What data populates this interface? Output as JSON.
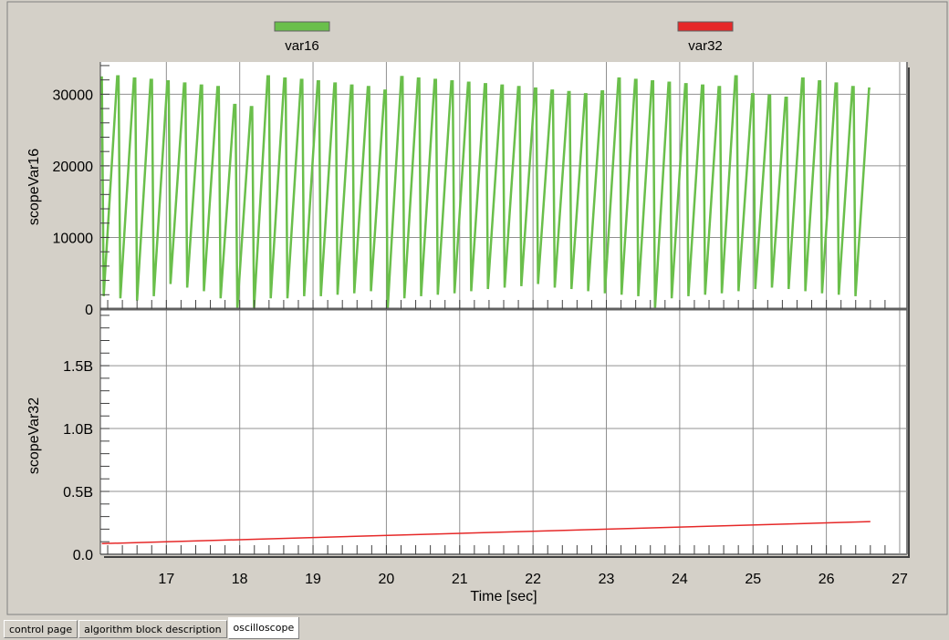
{
  "legend": [
    {
      "name": "var16",
      "color": "#6abf4b"
    },
    {
      "name": "var32",
      "color": "#e62828"
    }
  ],
  "tabs": [
    {
      "label": "control page",
      "active": false
    },
    {
      "label": "algorithm block description",
      "active": false
    },
    {
      "label": "oscilloscope",
      "active": true
    }
  ],
  "chart_data": [
    {
      "type": "line",
      "ylabel": "scopeVar16",
      "series_name": "var16",
      "color": "#6abf4b",
      "xlim": [
        16.1,
        27.1
      ],
      "ylim": [
        0,
        34500
      ],
      "yticks": [
        0,
        10000,
        20000,
        30000
      ],
      "yticklabels": [
        "0",
        "10000",
        "20000",
        "30000"
      ],
      "description": "sawtooth waveform, ~4 cycles per second",
      "x_start": 16.12,
      "x_end": 26.6,
      "sawtooth_peaks": [
        32500,
        32200,
        32000,
        31800,
        31500,
        31200,
        31000,
        28500,
        28200,
        32500,
        32200,
        32000,
        31800,
        31500,
        31200,
        31000,
        30500,
        32400,
        32200,
        32000,
        31800,
        31600,
        31400,
        31200,
        31000,
        30800,
        30500,
        30300,
        30000,
        30400,
        32200,
        32000,
        31800,
        31600,
        31400,
        31200,
        31000,
        32500,
        30000,
        29800,
        29500,
        32200,
        31800,
        31500,
        31000,
        30800
      ],
      "sawtooth_troughs": [
        1800,
        1500,
        1200,
        1800,
        3500,
        3000,
        2500,
        1500,
        0,
        0,
        1500,
        1500,
        1800,
        1800,
        2000,
        2200,
        2500,
        0,
        1500,
        1800,
        2000,
        2200,
        2500,
        2800,
        3000,
        3200,
        3500,
        3000,
        2800,
        2500,
        2200,
        2000,
        1800,
        0,
        1500,
        1800,
        2000,
        2200,
        2500,
        2800,
        3000,
        2800,
        2500,
        2200,
        2000,
        1800
      ]
    },
    {
      "type": "line",
      "ylabel": "scopeVar32",
      "series_name": "var32",
      "color": "#e62828",
      "xlim": [
        16.1,
        27.1
      ],
      "ylim": [
        0,
        1.95
      ],
      "yticks": [
        0,
        0.5,
        1.0,
        1.5
      ],
      "yticklabels": [
        "0.0",
        "0.5B",
        "1.0B",
        "1.5B"
      ],
      "x": [
        16.12,
        26.6
      ],
      "y": [
        0.085,
        0.26
      ]
    }
  ],
  "xaxis": {
    "label": "Time [sec]",
    "ticks": [
      17,
      18,
      19,
      20,
      21,
      22,
      23,
      24,
      25,
      26,
      27
    ]
  }
}
